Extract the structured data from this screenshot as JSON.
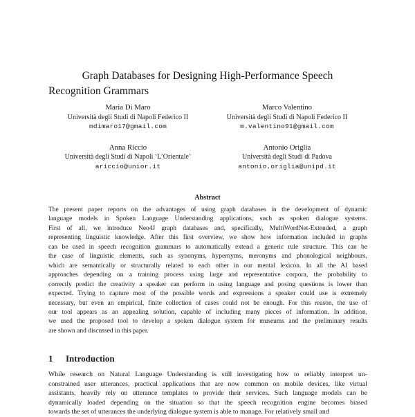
{
  "title": {
    "lines": [
      "Graph Databases for Designing High-Performance Speech",
      "Recognition Grammars"
    ]
  },
  "authors": [
    {
      "name": "Maria Di Maro",
      "affiliation": "Università degli Studi di Napoli Federico II",
      "email": "mdimaro17@gmail.com"
    },
    {
      "name": "Marco Valentino",
      "affiliation": "Università degli Studi di Napoli Federico II",
      "email": "m.valentino91@gmail.com"
    },
    {
      "name": "Anna Riccio",
      "affiliation": "Università degli Studi di Napoli ‘L’Orientale’",
      "email": "ariccio@unior.it"
    },
    {
      "name": "Antonio Origlia",
      "affiliation": "Università degli Studi di Padova",
      "email": "antonio.origlia@unipd.it"
    }
  ],
  "abstract": {
    "heading": "Abstract",
    "lines": [
      "The present paper reports on the advantages of using graph databases in the development of dynamic",
      "language models in Spoken Language Understanding applications, such as spoken dialogue systems.",
      "First of all, we introduce Neo4J graph databases and, specifically, MultiWordNet-Extended, a graph",
      "representing linguistic knowledge. After this first overview, we show how information included in graphs",
      "can be used in speech recognition grammars to automatically extend a generic rule structure. This can be",
      "the case of linguistic elements, such as synonyms, hypernyms, meronyms and phonological neighbours,",
      "which are semantically or structurally related to each other in our mental lexicon. In all the AI based",
      "approaches depending on a training process using large and representative corpora, the probability to",
      "correctly predict the creativity a speaker can perform in using language and posing questions is lower than",
      "expected. Trying to capture most of the possible words and expressions a speaker could use is extremely",
      "necessary, but even an empirical, finite collection of cases could not be enough. For this reason, the use of",
      "our tool appears as an appealing solution, capable of including many pieces of information. In addition,",
      "we used the proposed tool to develop a spoken dialogue system for museums and the preliminary results",
      "are shown and discussed in this paper."
    ]
  },
  "introduction": {
    "number": "1",
    "heading": "Introduction",
    "lines": [
      "While research on Natural Language Understanding is still investigating how to reliably interpret un-",
      "constrained user utterances, practical applications that are now common on mobile devices, like virtual",
      "assistants, heavily rely on utterance templates to provide their services. Such language models can be",
      "dynamically loaded depending on the situation so that the speech recognition engine becomes biased",
      "towards the set of utterances the underlying dialogue system is able to manage. For relatively small and"
    ]
  }
}
